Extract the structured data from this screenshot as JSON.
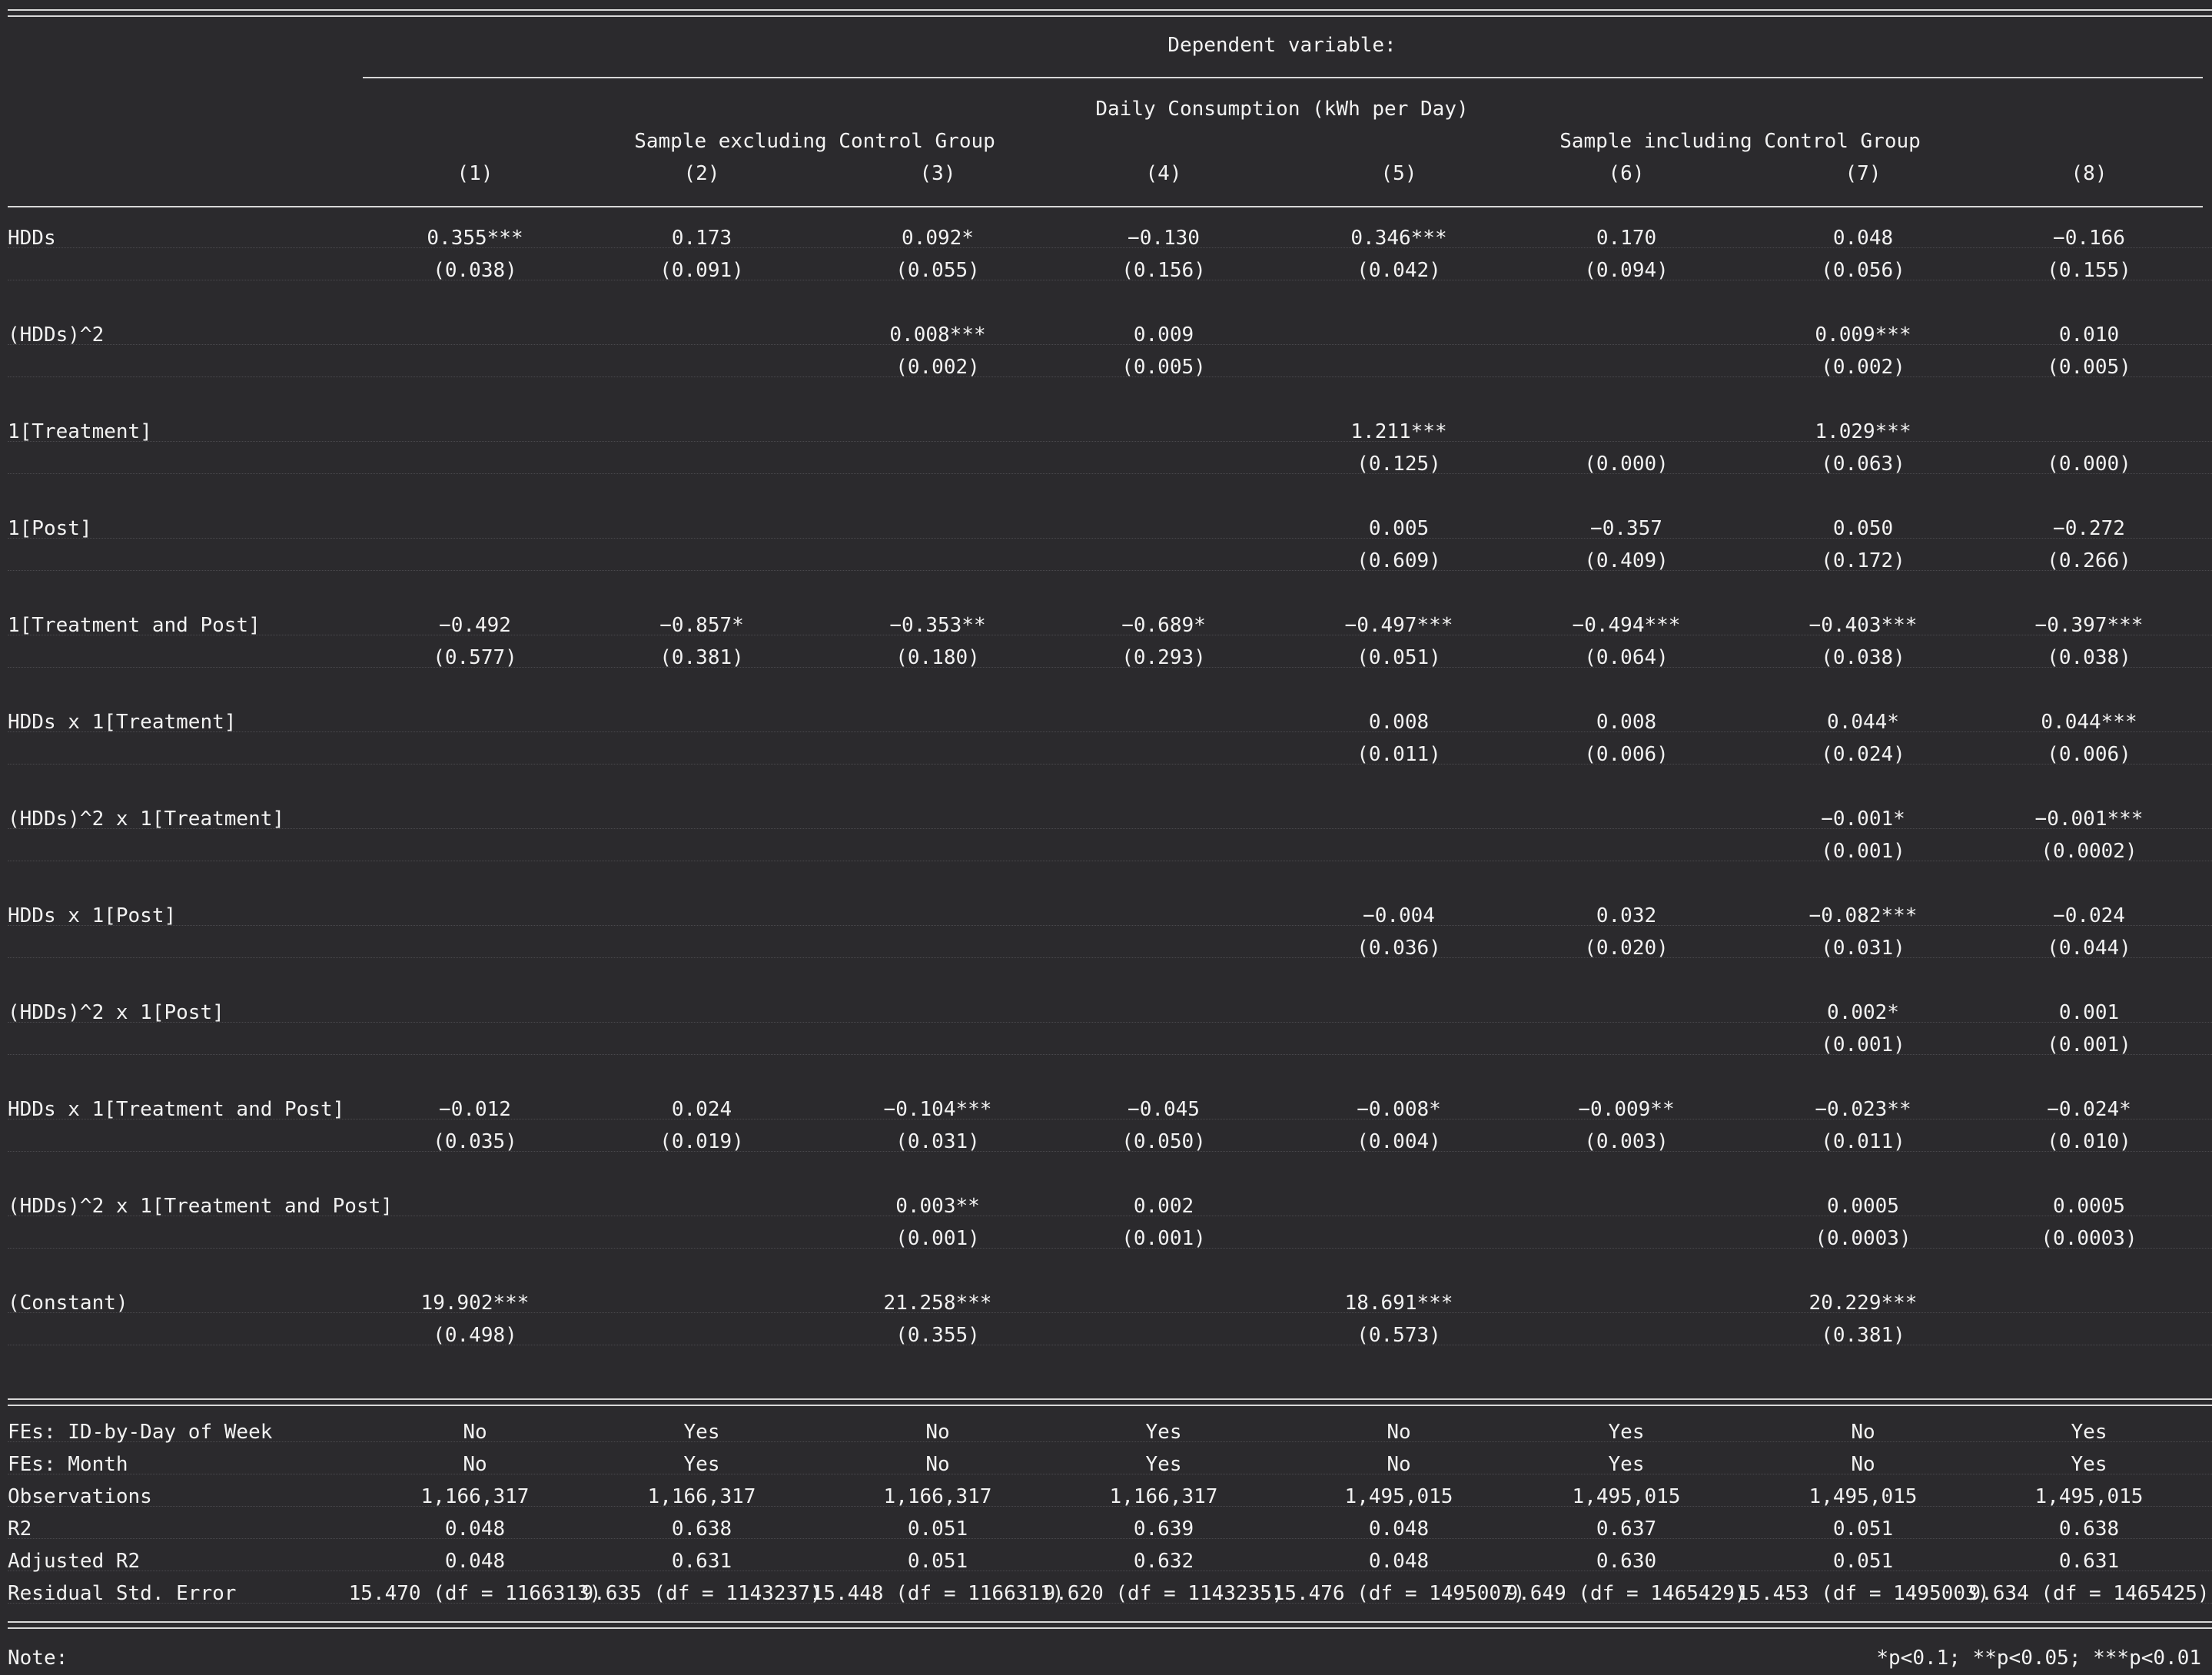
{
  "header": {
    "dep_var_label": "Dependent variable:",
    "dep_var_name": "Daily Consumption (kWh per Day)",
    "groups": [
      {
        "label": "Sample excluding Control Group"
      },
      {
        "label": "Sample including Control Group"
      }
    ],
    "columns": [
      "(1)",
      "(2)",
      "(3)",
      "(4)",
      "(5)",
      "(6)",
      "(7)",
      "(8)"
    ]
  },
  "coefficients": [
    {
      "name": "HDDs",
      "est": [
        "0.355***",
        "0.173",
        "0.092*",
        "−0.130",
        "0.346***",
        "0.170",
        "0.048",
        "−0.166"
      ],
      "se": [
        "(0.038)",
        "(0.091)",
        "(0.055)",
        "(0.156)",
        "(0.042)",
        "(0.094)",
        "(0.056)",
        "(0.155)"
      ]
    },
    {
      "name": "(HDDs)^2",
      "est": [
        "",
        "",
        "0.008***",
        "0.009",
        "",
        "",
        "0.009***",
        "0.010"
      ],
      "se": [
        "",
        "",
        "(0.002)",
        "(0.005)",
        "",
        "",
        "(0.002)",
        "(0.005)"
      ]
    },
    {
      "name": "1[Treatment]",
      "est": [
        "",
        "",
        "",
        "",
        "1.211***",
        "",
        "1.029***",
        ""
      ],
      "se": [
        "",
        "",
        "",
        "",
        "(0.125)",
        "(0.000)",
        "(0.063)",
        "(0.000)"
      ]
    },
    {
      "name": "1[Post]",
      "est": [
        "",
        "",
        "",
        "",
        "0.005",
        "−0.357",
        "0.050",
        "−0.272"
      ],
      "se": [
        "",
        "",
        "",
        "",
        "(0.609)",
        "(0.409)",
        "(0.172)",
        "(0.266)"
      ]
    },
    {
      "name": "1[Treatment and Post]",
      "est": [
        "−0.492",
        "−0.857*",
        "−0.353**",
        "−0.689*",
        "−0.497***",
        "−0.494***",
        "−0.403***",
        "−0.397***"
      ],
      "se": [
        "(0.577)",
        "(0.381)",
        "(0.180)",
        "(0.293)",
        "(0.051)",
        "(0.064)",
        "(0.038)",
        "(0.038)"
      ]
    },
    {
      "name": "HDDs x 1[Treatment]",
      "est": [
        "",
        "",
        "",
        "",
        "0.008",
        "0.008",
        "0.044*",
        "0.044***"
      ],
      "se": [
        "",
        "",
        "",
        "",
        "(0.011)",
        "(0.006)",
        "(0.024)",
        "(0.006)"
      ]
    },
    {
      "name": "(HDDs)^2 x 1[Treatment]",
      "est": [
        "",
        "",
        "",
        "",
        "",
        "",
        "−0.001*",
        "−0.001***"
      ],
      "se": [
        "",
        "",
        "",
        "",
        "",
        "",
        "(0.001)",
        "(0.0002)"
      ]
    },
    {
      "name": "HDDs x 1[Post]",
      "est": [
        "",
        "",
        "",
        "",
        "−0.004",
        "0.032",
        "−0.082***",
        "−0.024"
      ],
      "se": [
        "",
        "",
        "",
        "",
        "(0.036)",
        "(0.020)",
        "(0.031)",
        "(0.044)"
      ]
    },
    {
      "name": "(HDDs)^2 x 1[Post]",
      "est": [
        "",
        "",
        "",
        "",
        "",
        "",
        "0.002*",
        "0.001"
      ],
      "se": [
        "",
        "",
        "",
        "",
        "",
        "",
        "(0.001)",
        "(0.001)"
      ]
    },
    {
      "name": "HDDs x 1[Treatment and Post]",
      "est": [
        "−0.012",
        "0.024",
        "−0.104***",
        "−0.045",
        "−0.008*",
        "−0.009**",
        "−0.023**",
        "−0.024*"
      ],
      "se": [
        "(0.035)",
        "(0.019)",
        "(0.031)",
        "(0.050)",
        "(0.004)",
        "(0.003)",
        "(0.011)",
        "(0.010)"
      ]
    },
    {
      "name": "(HDDs)^2 x 1[Treatment and Post]",
      "est": [
        "",
        "",
        "0.003**",
        "0.002",
        "",
        "",
        "0.0005",
        "0.0005"
      ],
      "se": [
        "",
        "",
        "(0.001)",
        "(0.001)",
        "",
        "",
        "(0.0003)",
        "(0.0003)"
      ]
    },
    {
      "name": "(Constant)",
      "est": [
        "19.902***",
        "",
        "21.258***",
        "",
        "18.691***",
        "",
        "20.229***",
        ""
      ],
      "se": [
        "(0.498)",
        "",
        "(0.355)",
        "",
        "(0.573)",
        "",
        "(0.381)",
        ""
      ]
    }
  ],
  "stats": [
    {
      "name": "FEs: ID-by-Day of Week",
      "values": [
        "No",
        "Yes",
        "No",
        "Yes",
        "No",
        "Yes",
        "No",
        "Yes"
      ]
    },
    {
      "name": "FEs: Month",
      "values": [
        "No",
        "Yes",
        "No",
        "Yes",
        "No",
        "Yes",
        "No",
        "Yes"
      ]
    },
    {
      "name": "Observations",
      "values": [
        "1,166,317",
        "1,166,317",
        "1,166,317",
        "1,166,317",
        "1,495,015",
        "1,495,015",
        "1,495,015",
        "1,495,015"
      ]
    },
    {
      "name": "R2",
      "values": [
        "0.048",
        "0.638",
        "0.051",
        "0.639",
        "0.048",
        "0.637",
        "0.051",
        "0.638"
      ]
    },
    {
      "name": "Adjusted R2",
      "values": [
        "0.048",
        "0.631",
        "0.051",
        "0.632",
        "0.048",
        "0.630",
        "0.051",
        "0.631"
      ]
    },
    {
      "name": "Residual Std. Error",
      "values": [
        "15.470 (df = 1166313)",
        "9.635 (df = 1143237)",
        "15.448 (df = 1166311)",
        "9.620 (df = 1143235)",
        "15.476 (df = 1495007)",
        "9.649 (df = 1465429)",
        "15.453 (df = 1495003)",
        "9.634 (df = 1465425)"
      ]
    }
  ],
  "note": {
    "label": "Note:",
    "text": "*p<0.1; **p<0.05; ***p<0.01"
  }
}
